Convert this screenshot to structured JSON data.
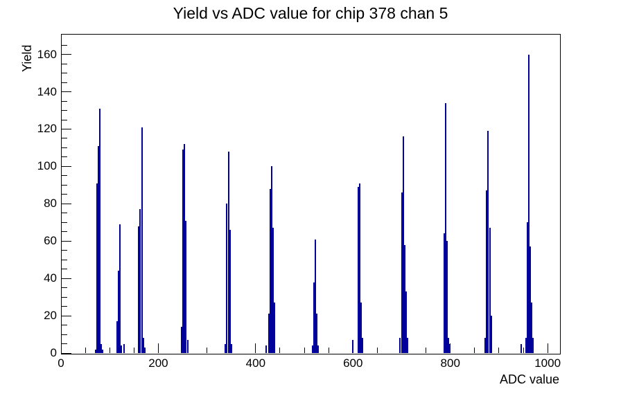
{
  "page": {
    "background": "#ffffff"
  },
  "chart_data": {
    "type": "histogram",
    "title": "Yield vs ADC value for chip 378 chan 5",
    "xlabel": "ADC value",
    "ylabel": "Yield",
    "xlim": [
      0,
      1024
    ],
    "ylim": [
      0,
      171
    ],
    "x_major_ticks": [
      0,
      200,
      400,
      600,
      800,
      1000
    ],
    "x_minor_tick_step": 50,
    "y_major_ticks": [
      0,
      20,
      40,
      60,
      80,
      100,
      120,
      140,
      160
    ],
    "y_minor_tick_step": 5,
    "grid": false,
    "legend": false,
    "bin_width_adc": 3,
    "series_color": "#00009a",
    "frame_color": "#000000",
    "peak_summary": {
      "adc_positions": [
        80,
        121,
        166,
        254,
        344,
        433,
        523,
        614,
        703,
        790,
        878,
        961
      ],
      "peak_yields": [
        131,
        69,
        121,
        112,
        108,
        100,
        61,
        91,
        116,
        134,
        119,
        160
      ]
    },
    "peaks": [
      {
        "adc": 80,
        "bins": [
          [
            -3,
            2
          ],
          [
            -2,
            91
          ],
          [
            -1,
            111
          ],
          [
            0,
            131
          ],
          [
            1,
            5
          ],
          [
            2,
            2
          ]
        ]
      },
      {
        "adc": 121,
        "bins": [
          [
            -2,
            17
          ],
          [
            -1,
            44
          ],
          [
            0,
            69
          ],
          [
            1,
            4
          ],
          [
            3,
            5
          ]
        ]
      },
      {
        "adc": 166,
        "bins": [
          [
            -2,
            68
          ],
          [
            -1,
            77
          ],
          [
            0,
            121
          ],
          [
            1,
            8
          ],
          [
            2,
            3
          ]
        ]
      },
      {
        "adc": 254,
        "bins": [
          [
            -2,
            14
          ],
          [
            -1,
            109
          ],
          [
            0,
            112
          ],
          [
            1,
            71
          ],
          [
            2,
            7
          ]
        ]
      },
      {
        "adc": 344,
        "bins": [
          [
            -2,
            5
          ],
          [
            -1,
            80
          ],
          [
            0,
            108
          ],
          [
            1,
            66
          ],
          [
            2,
            5
          ]
        ]
      },
      {
        "adc": 433,
        "bins": [
          [
            -4,
            4
          ],
          [
            -2,
            21
          ],
          [
            -1,
            88
          ],
          [
            0,
            100
          ],
          [
            1,
            67
          ],
          [
            2,
            27
          ]
        ]
      },
      {
        "adc": 523,
        "bins": [
          [
            -2,
            4
          ],
          [
            -1,
            38
          ],
          [
            0,
            61
          ],
          [
            1,
            21
          ],
          [
            2,
            4
          ]
        ]
      },
      {
        "adc": 614,
        "bins": [
          [
            -5,
            7
          ],
          [
            -1,
            89
          ],
          [
            0,
            91
          ],
          [
            1,
            27
          ],
          [
            2,
            8
          ]
        ]
      },
      {
        "adc": 703,
        "bins": [
          [
            -2,
            8
          ],
          [
            -1,
            86
          ],
          [
            0,
            116
          ],
          [
            1,
            58
          ],
          [
            2,
            33
          ],
          [
            3,
            8
          ]
        ]
      },
      {
        "adc": 790,
        "bins": [
          [
            -1,
            64
          ],
          [
            0,
            134
          ],
          [
            1,
            60
          ],
          [
            2,
            8
          ],
          [
            3,
            5
          ]
        ]
      },
      {
        "adc": 878,
        "bins": [
          [
            -2,
            8
          ],
          [
            -1,
            87
          ],
          [
            0,
            119
          ],
          [
            1,
            67
          ],
          [
            2,
            20
          ]
        ]
      },
      {
        "adc": 961,
        "bins": [
          [
            -5,
            5
          ],
          [
            -2,
            8
          ],
          [
            -1,
            70
          ],
          [
            0,
            160
          ],
          [
            1,
            57
          ],
          [
            2,
            27
          ],
          [
            3,
            8
          ]
        ]
      }
    ]
  }
}
